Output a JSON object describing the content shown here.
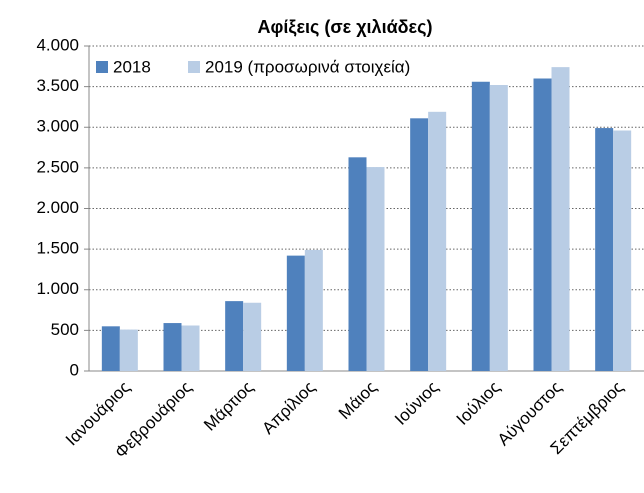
{
  "chart_data": {
    "type": "bar",
    "title": "Αφίξεις (σε χιλιάδες)",
    "categories": [
      "Ιανουάριος",
      "Φεβρουάριος",
      "Μάρτιος",
      "Απρίλιος",
      "Μάιος",
      "Ιούνιος",
      "Ιούλιος",
      "Αύγουστος",
      "Σεπτέμβριος"
    ],
    "series": [
      {
        "name": "2018",
        "color": "#4f81bd",
        "values": [
          550,
          590,
          860,
          1420,
          2630,
          3110,
          3560,
          3600,
          2990
        ]
      },
      {
        "name": "2019 (προσωρινά στοιχεία)",
        "color": "#b9cde5",
        "values": [
          510,
          560,
          840,
          1490,
          2510,
          3190,
          3520,
          3740,
          2960
        ]
      }
    ],
    "ylim": [
      0,
      4000
    ],
    "yticks": [
      0,
      500,
      {
        "value": 1000,
        "label": "1.000"
      },
      {
        "value": 1500,
        "label": "1.500"
      },
      {
        "value": 2000,
        "label": "2.000"
      },
      {
        "value": 2500,
        "label": "2.500"
      },
      {
        "value": 3000,
        "label": "3.000"
      },
      {
        "value": 3500,
        "label": "3.500"
      },
      {
        "value": 4000,
        "label": "4.000"
      }
    ],
    "grid": true,
    "legend": "top-left"
  }
}
